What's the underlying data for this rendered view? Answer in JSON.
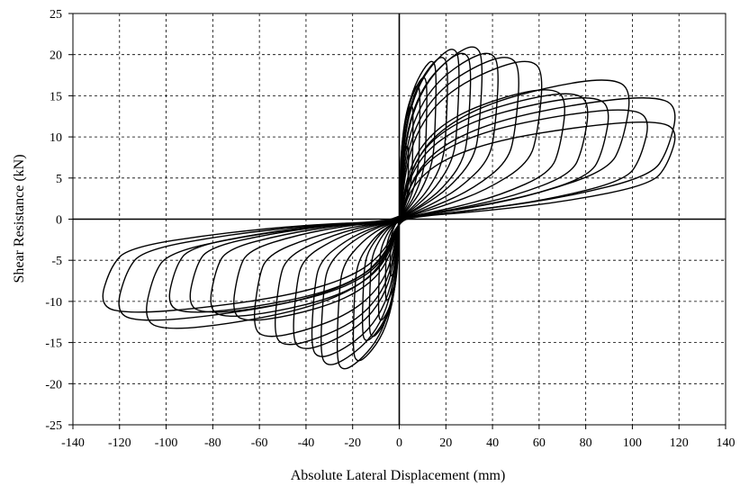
{
  "chart_data": {
    "type": "line",
    "title": "",
    "xlabel": "Absolute Lateral Displacement (mm)",
    "ylabel": "Shear Resistance (kN)",
    "xlim": [
      -140,
      140
    ],
    "ylim": [
      -25,
      25
    ],
    "x_ticks": [
      -140,
      -120,
      -100,
      -80,
      -60,
      -40,
      -20,
      0,
      20,
      40,
      60,
      80,
      100,
      120,
      140
    ],
    "y_ticks": [
      -25,
      -20,
      -15,
      -10,
      -5,
      0,
      5,
      10,
      15,
      20,
      25
    ],
    "grid": "dashed",
    "legend": "none",
    "line_color": "#000000",
    "series": [
      {
        "values_description": "hysteresis loops",
        "cycles": [
          {
            "dmax": 4,
            "pmax": 9.0,
            "dmin": -4,
            "pmin": -7.0
          },
          {
            "dmax": 6,
            "pmax": 14.0,
            "dmin": -6,
            "pmin": -10.0
          },
          {
            "dmax": 9,
            "pmax": 16.5,
            "dmin": -9,
            "pmin": -12.5
          },
          {
            "dmax": 12,
            "pmax": 17.5,
            "dmin": -13,
            "pmin": -14.5
          },
          {
            "dmax": 16,
            "pmax": 19.5,
            "dmin": -16,
            "pmin": -15.0
          },
          {
            "dmax": 21,
            "pmax": 20.0,
            "dmin": -20,
            "pmin": -17.5
          },
          {
            "dmax": 26,
            "pmax": 21.0,
            "dmin": -27,
            "pmin": -18.5
          },
          {
            "dmax": 31,
            "pmax": 20.5,
            "dmin": -34,
            "pmin": -18.0
          },
          {
            "dmax": 36,
            "pmax": 21.3,
            "dmin": -38,
            "pmin": -17.0
          },
          {
            "dmax": 43,
            "pmax": 20.5,
            "dmin": -46,
            "pmin": -16.0
          },
          {
            "dmax": 52,
            "pmax": 20.0,
            "dmin": -54,
            "pmin": -15.5
          },
          {
            "dmax": 62,
            "pmax": 19.5,
            "dmin": -63,
            "pmin": -14.5
          },
          {
            "dmax": 72,
            "pmax": 16.0,
            "dmin": -72,
            "pmin": -12.5
          },
          {
            "dmax": 82,
            "pmax": 15.5,
            "dmin": -82,
            "pmin": -12.0
          },
          {
            "dmax": 91,
            "pmax": 15.0,
            "dmin": -91,
            "pmin": -11.5
          },
          {
            "dmax": 100,
            "pmax": 17.2,
            "dmin": -100,
            "pmin": -11.5
          },
          {
            "dmax": 108,
            "pmax": 13.5,
            "dmin": -110,
            "pmin": -13.5
          },
          {
            "dmax": 120,
            "pmax": 15.0,
            "dmin": -122,
            "pmin": -12.5
          },
          {
            "dmax": 120,
            "pmax": 12.0,
            "dmin": -129,
            "pmin": -11.5
          }
        ]
      }
    ]
  }
}
